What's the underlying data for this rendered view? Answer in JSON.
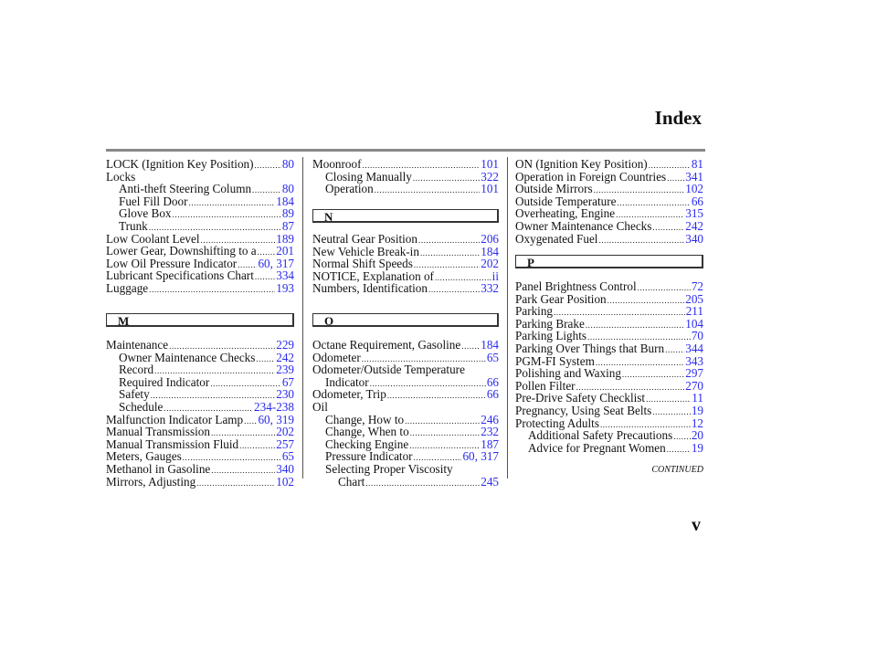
{
  "header": {
    "title": "Index"
  },
  "columns": [
    {
      "groups": [
        {
          "entries": [
            {
              "label": "LOCK (Ignition Key Position)",
              "pages": "80",
              "indent": 0
            },
            {
              "label": "Locks",
              "pages": "",
              "indent": 0
            },
            {
              "label": "Anti-theft Steering Column",
              "pages": "80",
              "indent": 1
            },
            {
              "label": "Fuel Fill Door",
              "pages": "184",
              "indent": 1
            },
            {
              "label": "Glove Box",
              "pages": "89",
              "indent": 1
            },
            {
              "label": "Trunk",
              "pages": "87",
              "indent": 1
            },
            {
              "label": "Low Coolant Level",
              "pages": "189",
              "indent": 0
            },
            {
              "label": "Lower Gear, Downshifting to a",
              "pages": "201",
              "indent": 0
            },
            {
              "label": "Low Oil Pressure Indicator",
              "pages": "60, 317",
              "indent": 0
            },
            {
              "label": "Lubricant Specifications Chart",
              "pages": "334",
              "indent": 0
            },
            {
              "label": "Luggage",
              "pages": "193",
              "indent": 0
            }
          ]
        },
        {
          "section": "M",
          "entries": [
            {
              "label": "Maintenance",
              "pages": "229",
              "indent": 0
            },
            {
              "label": "Owner Maintenance Checks",
              "pages": "242",
              "indent": 1
            },
            {
              "label": "Record",
              "pages": "239",
              "indent": 1
            },
            {
              "label": "Required Indicator",
              "pages": "67",
              "indent": 1
            },
            {
              "label": "Safety",
              "pages": "230",
              "indent": 1
            },
            {
              "label": "Schedule",
              "pages": "234-238",
              "indent": 1
            },
            {
              "label": "Malfunction Indicator Lamp",
              "pages": "60, 319",
              "indent": 0
            },
            {
              "label": "Manual Transmission",
              "pages": "202",
              "indent": 0
            },
            {
              "label": "Manual Transmission Fluid",
              "pages": "257",
              "indent": 0
            },
            {
              "label": "Meters, Gauges",
              "pages": "65",
              "indent": 0
            },
            {
              "label": "Methanol in Gasoline",
              "pages": "340",
              "indent": 0
            },
            {
              "label": "Mirrors, Adjusting",
              "pages": "102",
              "indent": 0
            }
          ]
        }
      ]
    },
    {
      "groups": [
        {
          "entries": [
            {
              "label": "Moonroof",
              "pages": "101",
              "indent": 0
            },
            {
              "label": "Closing Manually",
              "pages": "322",
              "indent": 1
            },
            {
              "label": "Operation",
              "pages": "101",
              "indent": 1
            }
          ]
        },
        {
          "section": "N",
          "entries": [
            {
              "label": "Neutral Gear Position",
              "pages": "206",
              "indent": 0
            },
            {
              "label": "New Vehicle Break-in",
              "pages": "184",
              "indent": 0
            },
            {
              "label": "Normal Shift Speeds",
              "pages": "202",
              "indent": 0
            },
            {
              "label": "NOTICE, Explanation of",
              "pages": "ii",
              "indent": 0
            },
            {
              "label": "Numbers, Identification",
              "pages": "332",
              "indent": 0
            }
          ]
        },
        {
          "section": "O",
          "entries": [
            {
              "label": "Octane Requirement, Gasoline",
              "pages": "184",
              "indent": 0
            },
            {
              "label": "Odometer",
              "pages": "65",
              "indent": 0
            },
            {
              "label": "Odometer/Outside Temperature",
              "pages": "",
              "indent": 0
            },
            {
              "label": "Indicator",
              "pages": "66",
              "indent": 1
            },
            {
              "label": "Odometer, Trip",
              "pages": "66",
              "indent": 0
            },
            {
              "label": "Oil",
              "pages": "",
              "indent": 0
            },
            {
              "label": "Change, How to",
              "pages": "246",
              "indent": 1
            },
            {
              "label": "Change, When to",
              "pages": "232",
              "indent": 1
            },
            {
              "label": "Checking Engine",
              "pages": "187",
              "indent": 1
            },
            {
              "label": "Pressure Indicator",
              "pages": "60, 317",
              "indent": 1
            },
            {
              "label": "Selecting Proper Viscosity",
              "pages": "",
              "indent": 1
            },
            {
              "label": "Chart",
              "pages": "245",
              "indent": 2
            }
          ]
        }
      ]
    },
    {
      "groups": [
        {
          "entries": [
            {
              "label": "ON (Ignition Key Position)",
              "pages": "81",
              "indent": 0
            },
            {
              "label": "Operation in Foreign Countries",
              "pages": "341",
              "indent": 0
            },
            {
              "label": "Outside Mirrors",
              "pages": "102",
              "indent": 0
            },
            {
              "label": "Outside Temperature",
              "pages": "66",
              "indent": 0
            },
            {
              "label": "Overheating, Engine",
              "pages": "315",
              "indent": 0
            },
            {
              "label": "Owner Maintenance Checks",
              "pages": "242",
              "indent": 0
            },
            {
              "label": "Oxygenated Fuel",
              "pages": "340",
              "indent": 0
            }
          ]
        },
        {
          "section": "P",
          "entries": [
            {
              "label": "Panel Brightness Control",
              "pages": "72",
              "indent": 0
            },
            {
              "label": "Park Gear Position",
              "pages": "205",
              "indent": 0
            },
            {
              "label": "Parking",
              "pages": "211",
              "indent": 0
            },
            {
              "label": "Parking Brake",
              "pages": "104",
              "indent": 0
            },
            {
              "label": "Parking Lights",
              "pages": "70",
              "indent": 0
            },
            {
              "label": "Parking Over Things that Burn",
              "pages": "344",
              "indent": 0
            },
            {
              "label": "PGM-FI System",
              "pages": "343",
              "indent": 0
            },
            {
              "label": "Polishing and Waxing",
              "pages": "297",
              "indent": 0
            },
            {
              "label": "Pollen Filter",
              "pages": "270",
              "indent": 0
            },
            {
              "label": "Pre-Drive Safety Checklist",
              "pages": "11",
              "indent": 0
            },
            {
              "label": "Pregnancy, Using Seat Belts",
              "pages": "19",
              "indent": 0
            },
            {
              "label": "Protecting Adults",
              "pages": "12",
              "indent": 0
            },
            {
              "label": "Additional Safety Precautions",
              "pages": "20",
              "indent": 1
            },
            {
              "label": "Advice for Pregnant Women",
              "pages": "19",
              "indent": 1
            }
          ]
        }
      ]
    }
  ],
  "footer": {
    "continued": "CONTINUED",
    "page_number": "v"
  },
  "colors": {
    "page_link": "#2a2af0",
    "rule": "#888888"
  }
}
